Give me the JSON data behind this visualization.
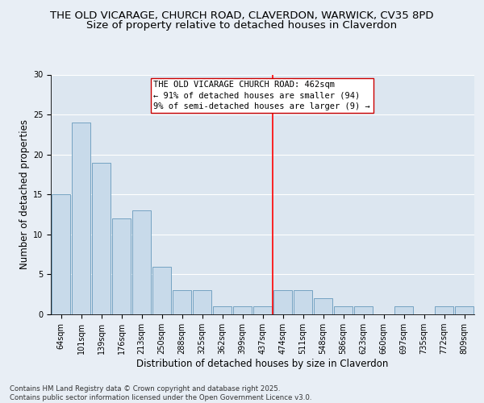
{
  "title_line1": "THE OLD VICARAGE, CHURCH ROAD, CLAVERDON, WARWICK, CV35 8PD",
  "title_line2": "Size of property relative to detached houses in Claverdon",
  "xlabel": "Distribution of detached houses by size in Claverdon",
  "ylabel": "Number of detached properties",
  "categories": [
    "64sqm",
    "101sqm",
    "139sqm",
    "176sqm",
    "213sqm",
    "250sqm",
    "288sqm",
    "325sqm",
    "362sqm",
    "399sqm",
    "437sqm",
    "474sqm",
    "511sqm",
    "548sqm",
    "586sqm",
    "623sqm",
    "660sqm",
    "697sqm",
    "735sqm",
    "772sqm",
    "809sqm"
  ],
  "values": [
    15,
    24,
    19,
    12,
    13,
    6,
    3,
    3,
    1,
    1,
    1,
    3,
    3,
    2,
    1,
    1,
    0,
    1,
    0,
    1,
    1
  ],
  "bar_color": "#c8daea",
  "bar_edge_color": "#6699bb",
  "background_color": "#dce6f0",
  "grid_color": "#ffffff",
  "red_line_x": 11.0,
  "annotation_text_line1": "THE OLD VICARAGE CHURCH ROAD: 462sqm",
  "annotation_text_line2": "← 91% of detached houses are smaller (94)",
  "annotation_text_line3": "9% of semi-detached houses are larger (9) →",
  "annotation_box_facecolor": "#ffffff",
  "annotation_box_edgecolor": "#cc0000",
  "ylim": [
    0,
    30
  ],
  "yticks": [
    0,
    5,
    10,
    15,
    20,
    25,
    30
  ],
  "footer_text": "Contains HM Land Registry data © Crown copyright and database right 2025.\nContains public sector information licensed under the Open Government Licence v3.0.",
  "title_fontsize": 9.5,
  "subtitle_fontsize": 9.5,
  "axis_label_fontsize": 8.5,
  "tick_fontsize": 7,
  "annotation_fontsize": 7.5,
  "footer_fontsize": 6.2,
  "fig_bg_color": "#e8eef5"
}
